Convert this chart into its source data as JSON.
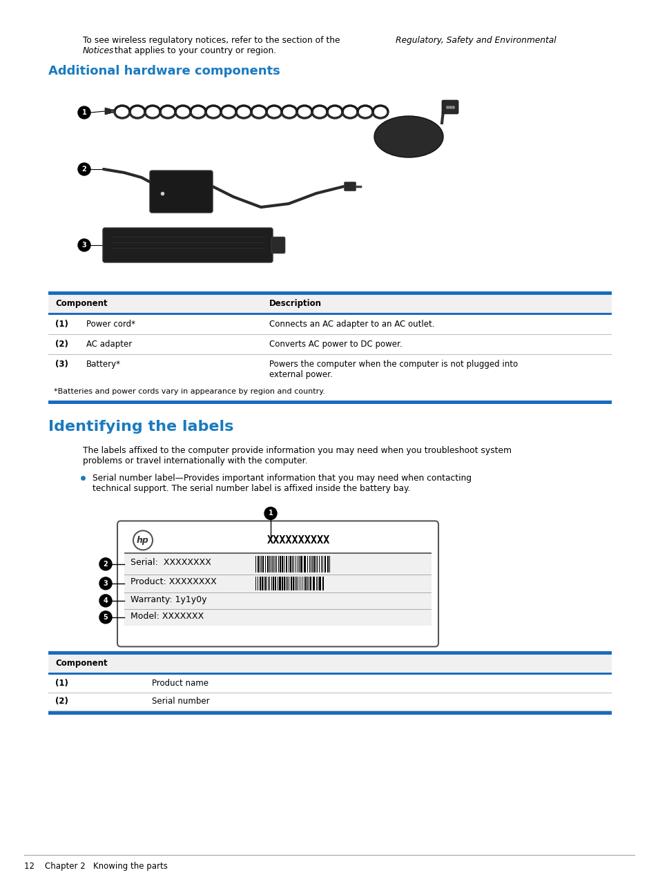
{
  "bg_color": "#ffffff",
  "blue_color": "#1a7abf",
  "dark_blue_line": "#1a6bbf",
  "black": "#000000",
  "gray_line": "#bbbbbb",
  "light_gray": "#e8e8e8",
  "section1_title": "Additional hardware components",
  "table1_header": [
    "Component",
    "Description"
  ],
  "table1_rows": [
    [
      "(1)",
      "Power cord*",
      "Connects an AC adapter to an AC outlet."
    ],
    [
      "(2)",
      "AC adapter",
      "Converts AC power to DC power."
    ],
    [
      "(3)",
      "Battery*",
      "Powers the computer when the computer is not plugged into\nexternal power."
    ]
  ],
  "table1_footnote": "*Batteries and power cords vary in appearance by region and country.",
  "section2_title": "Identifying the labels",
  "body_text1": "The labels affixed to the computer provide information you may need when you troubleshoot system\nproblems or travel internationally with the computer.",
  "bullet_text": "Serial number label—Provides important information that you may need when contacting\ntechnical support. The serial number label is affixed inside the battery bay.",
  "table2_rows": [
    [
      "(1)",
      "Product name"
    ],
    [
      "(2)",
      "Serial number"
    ]
  ],
  "footer_text": "12    Chapter 2   Knowing the parts"
}
